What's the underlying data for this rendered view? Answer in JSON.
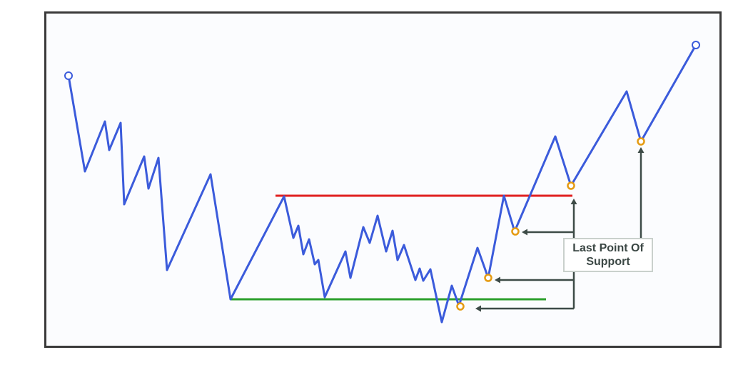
{
  "callout": {
    "line1": "Last Point Of",
    "line2": "Support"
  },
  "colors": {
    "price_line": "#3b5bdb",
    "resistance_line": "#e02020",
    "support_line": "#2ca02c",
    "lps_marker": "#e59b12",
    "endpoint_marker": "#3b5bdb",
    "arrows": "#3d4b47",
    "frame": "#3a3a3a"
  },
  "icons": {
    "start_marker": "open-circle",
    "end_marker": "open-circle",
    "lps_markers": "open-circle",
    "arrows": "arrow-left / arrow-up"
  }
}
